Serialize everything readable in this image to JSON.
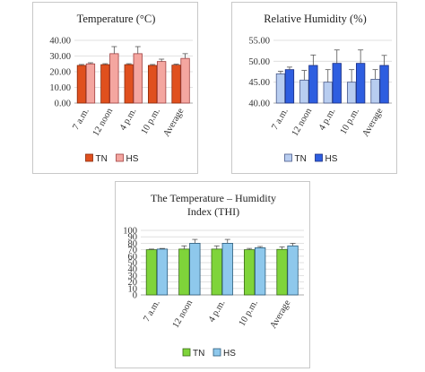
{
  "chart_data": [
    {
      "type": "bar",
      "title": "Temperature (°C)",
      "categories": [
        "7 a.m.",
        "12 noon",
        "4 p.m.",
        "10 p.m.",
        "Average"
      ],
      "ylim": [
        0,
        40
      ],
      "yticks": [
        "0.00",
        "10.00",
        "20.00",
        "30.00",
        "40.00"
      ],
      "ytick_values": [
        0,
        10,
        20,
        30,
        40
      ],
      "grid": true,
      "legend_position": "bottom",
      "series": [
        {
          "name": "TN",
          "values": [
            24,
            24.5,
            24.5,
            24,
            24.2
          ],
          "errors": [
            0.6,
            0.6,
            0.6,
            0.6,
            0.6
          ],
          "color": "#e0501e",
          "edge": "#8a2a0a"
        },
        {
          "name": "HS",
          "values": [
            25,
            31.5,
            31.5,
            26.5,
            28.5
          ],
          "errors": [
            0.7,
            4.5,
            4.5,
            1.5,
            3.0
          ],
          "color": "#f4a6a0",
          "edge": "#a04040"
        }
      ]
    },
    {
      "type": "bar",
      "title": "Relative Humidity (%)",
      "categories": [
        "7 a.m.",
        "12 noon",
        "4 p.m.",
        "10 p.m.",
        "Average"
      ],
      "ylim": [
        40,
        55
      ],
      "yticks": [
        "40.00",
        "45.00",
        "50.00",
        "55.00"
      ],
      "ytick_values": [
        40,
        45,
        50,
        55
      ],
      "grid": true,
      "legend_position": "bottom",
      "series": [
        {
          "name": "TN",
          "values": [
            47,
            45.5,
            45,
            45,
            45.7
          ],
          "errors": [
            0.6,
            2.3,
            3.0,
            3.0,
            2.3
          ],
          "color": "#b8cdf0",
          "edge": "#4a5a8a"
        },
        {
          "name": "HS",
          "values": [
            48,
            49,
            49.5,
            49.5,
            49
          ],
          "errors": [
            0.6,
            2.5,
            3.2,
            3.2,
            2.4
          ],
          "color": "#2e5ee0",
          "edge": "#1a2e80"
        }
      ]
    },
    {
      "type": "bar",
      "title": "The Temperature – Humidity Index (THI)",
      "title_lines": [
        "The Temperature – Humidity",
        "Index (THI)"
      ],
      "categories": [
        "7 a.m.",
        "12 noon",
        "4 p.m.",
        "10 p.m.",
        "Average"
      ],
      "ylim": [
        0,
        100
      ],
      "yticks": [
        "0",
        "10",
        "20",
        "30",
        "40",
        "50",
        "60",
        "70",
        "80",
        "90",
        "100"
      ],
      "ytick_values": [
        0,
        10,
        20,
        30,
        40,
        50,
        60,
        70,
        80,
        90,
        100
      ],
      "grid": true,
      "legend_position": "bottom",
      "series": [
        {
          "name": "TN",
          "values": [
            70,
            71,
            71,
            70,
            70.5
          ],
          "errors": [
            1,
            5,
            5,
            2,
            4
          ],
          "color": "#7fd43a",
          "edge": "#3a6a1a"
        },
        {
          "name": "HS",
          "values": [
            71,
            80,
            80,
            73,
            76
          ],
          "errors": [
            1,
            6,
            6,
            2,
            4
          ],
          "color": "#8ec8ec",
          "edge": "#2a5a7a"
        }
      ]
    }
  ]
}
